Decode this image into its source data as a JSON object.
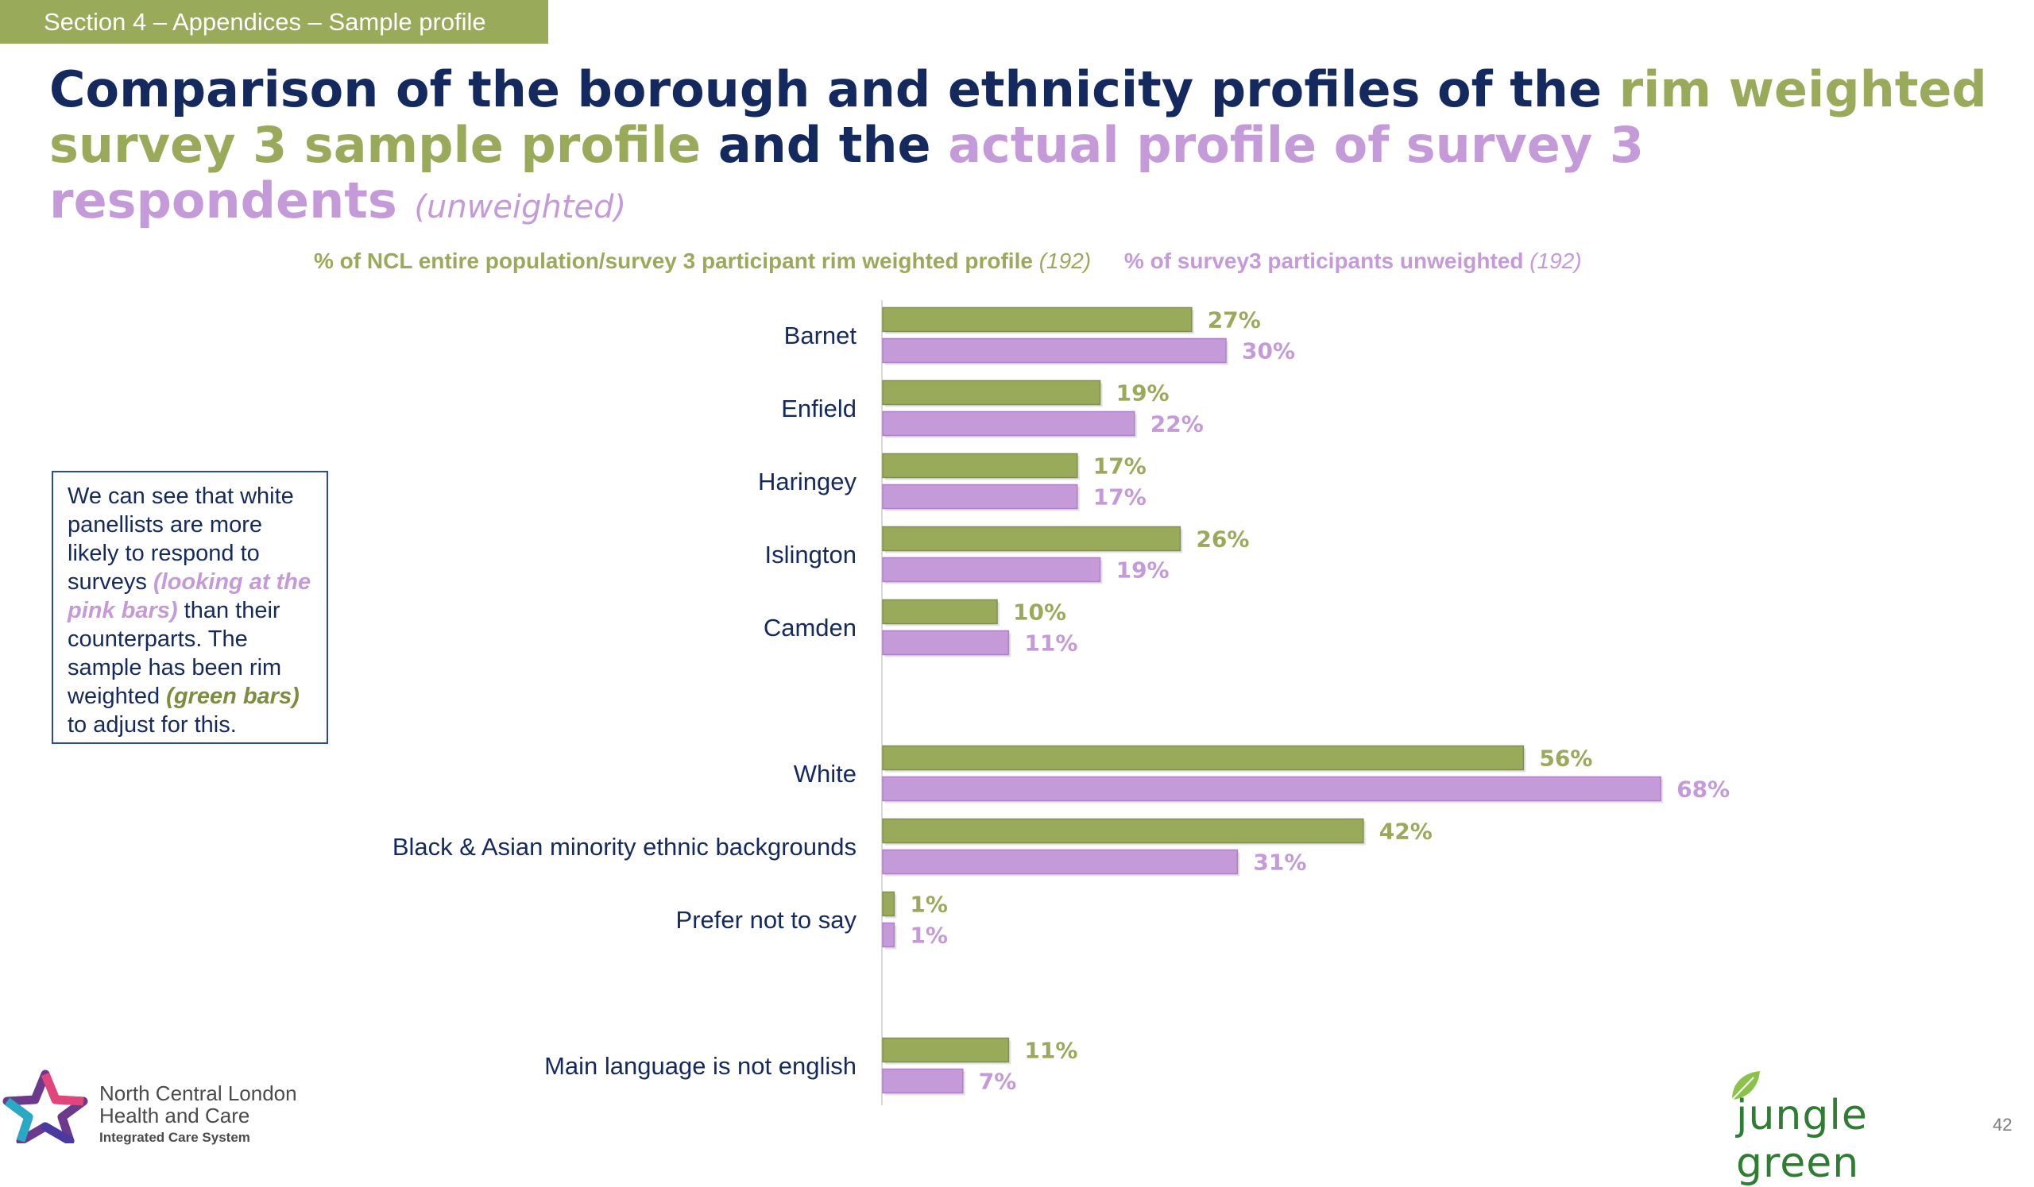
{
  "section_tag": "Section 4 – Appendices – Sample profile",
  "title": {
    "part1": "Comparison of the borough and ethnicity profiles of the ",
    "part2": "rim weighted survey 3 sample profile",
    "part3": " and the ",
    "part4": "actual profile of survey 3 respondents",
    "part5": "(unweighted)"
  },
  "note": {
    "t1": "We can see that white panellists are more likely to respond to surveys ",
    "t2": "(looking at the pink bars)",
    "t3": " than their counterparts. The sample has been rim weighted ",
    "t4": "(green bars)",
    "t5": " to adjust for this."
  },
  "logos": {
    "ncl_line1": "North Central London",
    "ncl_line2": "Health and Care",
    "ncl_line3": "Integrated Care System",
    "jg": "jungle green"
  },
  "page_number": "42",
  "colors": {
    "green": "#9aaa5b",
    "purple": "#c59ad8",
    "navy": "#14295e",
    "axis": "#d9d9d9"
  },
  "chart_data": {
    "type": "bar",
    "orientation": "horizontal",
    "categories": [
      "Barnet",
      "Enfield",
      "Haringey",
      "Islington",
      "Camden",
      "White",
      "Black & Asian minority ethnic backgrounds",
      "Prefer not to say",
      "Main language is not english"
    ],
    "series": [
      {
        "name": "% of NCL entire population/survey 3 participant rim weighted profile",
        "n_label": "(192)",
        "color": "#9aaa5b",
        "values": [
          27,
          19,
          17,
          26,
          10,
          56,
          42,
          1,
          11
        ]
      },
      {
        "name": "% of survey3 participants unweighted",
        "n_label": "(192)",
        "color": "#c59ad8",
        "values": [
          30,
          22,
          17,
          19,
          11,
          68,
          31,
          1,
          7
        ]
      }
    ],
    "value_suffix": "%",
    "legend": "top"
  }
}
